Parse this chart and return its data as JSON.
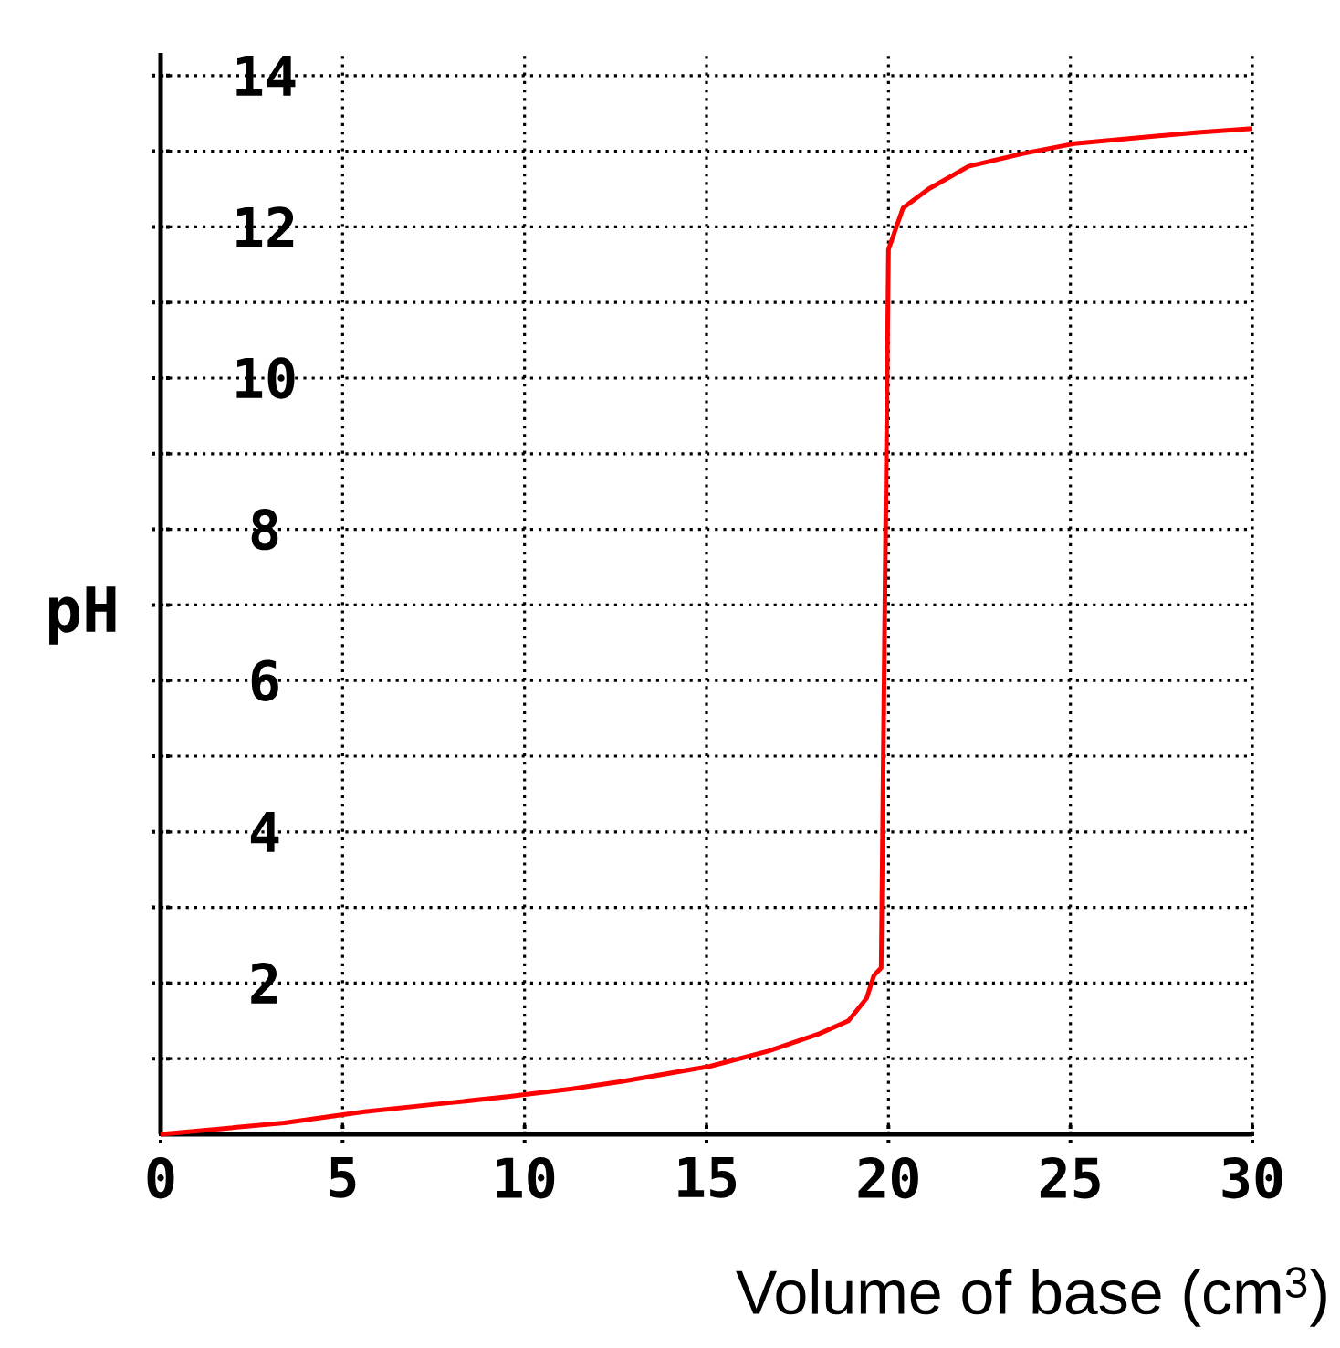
{
  "chart_data": {
    "type": "line",
    "xlabel": "Volume of base (cm$^{3}$)",
    "ylabel": "pH",
    "xlim": [
      0,
      30
    ],
    "ylim": [
      0,
      14.3
    ],
    "xticks": [
      0,
      5,
      10,
      15,
      20,
      25,
      30
    ],
    "yticks": [
      {
        "value": 1,
        "label": null
      },
      2,
      {
        "value": 3,
        "label": null
      },
      4,
      {
        "value": 5,
        "label": null
      },
      6,
      {
        "value": 7,
        "label": null
      },
      8,
      {
        "value": 9,
        "label": null
      },
      10,
      {
        "value": 11,
        "label": null
      },
      12,
      {
        "value": 13,
        "label": null
      },
      14
    ],
    "grid": true,
    "marker": "none",
    "line_style": "solid",
    "series": [
      {
        "color": "#ff0000",
        "x": [
          0,
          3.4,
          5.6,
          7.6,
          9.6,
          11.3,
          12.7,
          15.1,
          16.7,
          18.1,
          18.9,
          19.4,
          19.6,
          19.8,
          19.9,
          20.0,
          20.4,
          21.1,
          22.2,
          23.7,
          25.1,
          28.5,
          30
        ],
        "values": [
          0,
          0.15,
          0.3,
          0.4,
          0.5,
          0.6,
          0.7,
          0.9,
          1.1,
          1.33,
          1.5,
          1.8,
          2.1,
          2.2,
          7,
          11.7,
          12.25,
          12.5,
          12.8,
          12.97,
          13.1,
          13.25,
          13.3
        ]
      }
    ]
  }
}
